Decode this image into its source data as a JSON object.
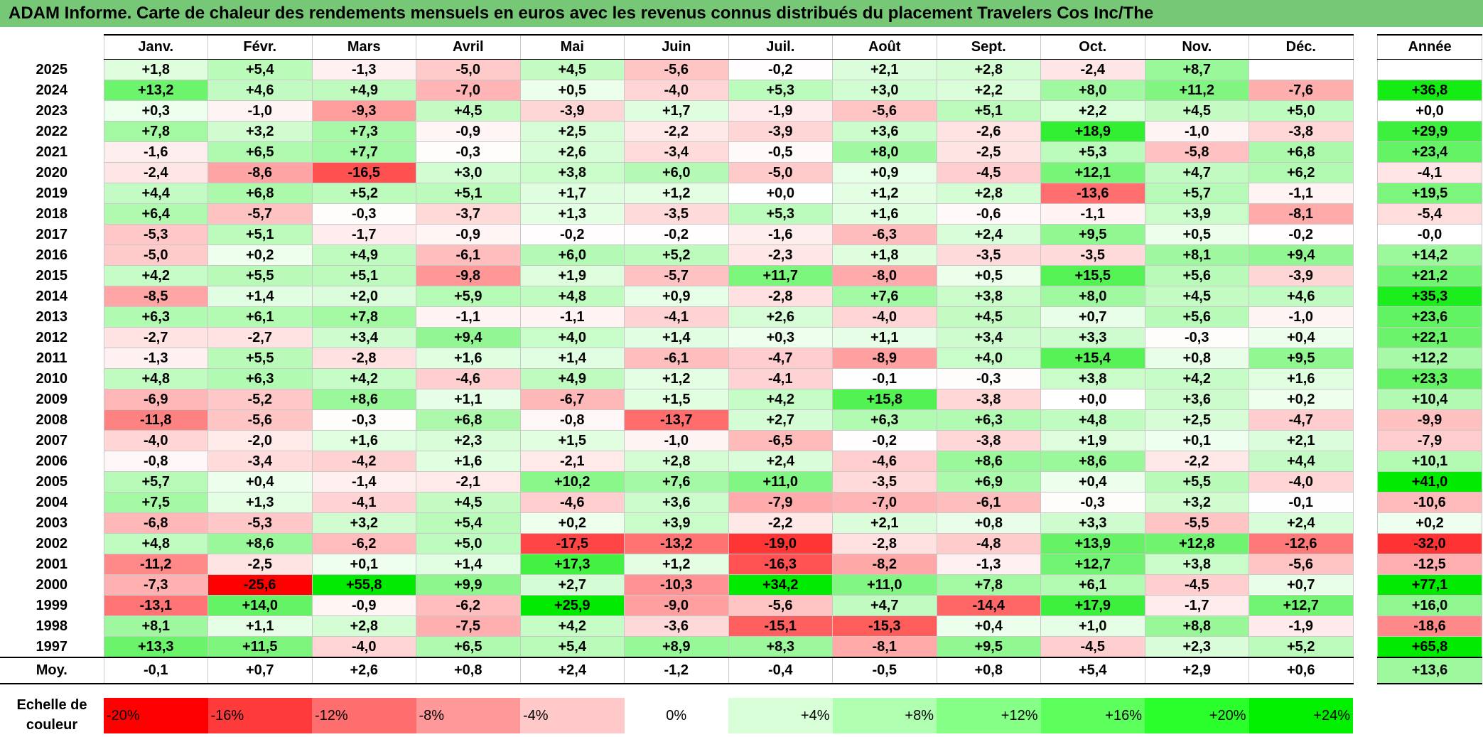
{
  "title": "ADAM Informe. Carte de chaleur des rendements mensuels en euros avec les revenus connus distribués du placement Travelers Cos Inc/The",
  "chart_data": {
    "type": "heatmap",
    "columns": [
      "Janv.",
      "Févr.",
      "Mars",
      "Avril",
      "Mai",
      "Juin",
      "Juil.",
      "Août",
      "Sept.",
      "Oct.",
      "Nov.",
      "Déc."
    ],
    "year_column_label": "Année",
    "rows": [
      {
        "year": "2025",
        "values": [
          "+1,8",
          "+5,4",
          "-1,3",
          "-5,0",
          "+4,5",
          "-5,6",
          "-0,2",
          "+2,1",
          "+2,8",
          "-2,4",
          "+8,7",
          ""
        ],
        "annual": ""
      },
      {
        "year": "2024",
        "values": [
          "+13,2",
          "+4,6",
          "+4,9",
          "-7,0",
          "+0,5",
          "-4,0",
          "+5,3",
          "+3,0",
          "+2,2",
          "+8,0",
          "+11,2",
          "-7,6"
        ],
        "annual": "+36,8"
      },
      {
        "year": "2023",
        "values": [
          "+0,3",
          "-1,0",
          "-9,3",
          "+4,5",
          "-3,9",
          "+1,7",
          "-1,9",
          "-5,6",
          "+5,1",
          "+2,2",
          "+4,5",
          "+5,0"
        ],
        "annual": "+0,0"
      },
      {
        "year": "2022",
        "values": [
          "+7,8",
          "+3,2",
          "+7,3",
          "-0,9",
          "+2,5",
          "-2,2",
          "-3,9",
          "+3,6",
          "-2,6",
          "+18,9",
          "-1,0",
          "-3,8"
        ],
        "annual": "+29,9"
      },
      {
        "year": "2021",
        "values": [
          "-1,6",
          "+6,5",
          "+7,7",
          "-0,3",
          "+2,6",
          "-3,4",
          "-0,5",
          "+8,0",
          "-2,5",
          "+5,3",
          "-5,8",
          "+6,8"
        ],
        "annual": "+23,4"
      },
      {
        "year": "2020",
        "values": [
          "-2,4",
          "-8,6",
          "-16,5",
          "+3,0",
          "+3,8",
          "+6,0",
          "-5,0",
          "+0,9",
          "-4,5",
          "+12,1",
          "+4,7",
          "+6,2"
        ],
        "annual": "-4,1"
      },
      {
        "year": "2019",
        "values": [
          "+4,4",
          "+6,8",
          "+5,2",
          "+5,1",
          "+1,7",
          "+1,2",
          "+0,0",
          "+1,2",
          "+2,8",
          "-13,6",
          "+5,7",
          "-1,1"
        ],
        "annual": "+19,5"
      },
      {
        "year": "2018",
        "values": [
          "+6,4",
          "-5,7",
          "-0,3",
          "-3,7",
          "+1,3",
          "-3,5",
          "+5,3",
          "+1,6",
          "-0,6",
          "-1,1",
          "+3,9",
          "-8,1"
        ],
        "annual": "-5,4"
      },
      {
        "year": "2017",
        "values": [
          "-5,3",
          "+5,1",
          "-1,7",
          "-0,9",
          "-0,2",
          "-0,2",
          "-1,6",
          "-6,3",
          "+2,4",
          "+9,5",
          "+0,5",
          "-0,2"
        ],
        "annual": "-0,0"
      },
      {
        "year": "2016",
        "values": [
          "-5,0",
          "+0,2",
          "+4,9",
          "-6,1",
          "+6,0",
          "+5,2",
          "-2,3",
          "+1,8",
          "-3,5",
          "-3,5",
          "+8,1",
          "+9,4"
        ],
        "annual": "+14,2"
      },
      {
        "year": "2015",
        "values": [
          "+4,2",
          "+5,5",
          "+5,1",
          "-9,8",
          "+1,9",
          "-5,7",
          "+11,7",
          "-8,0",
          "+0,5",
          "+15,5",
          "+5,6",
          "-3,9"
        ],
        "annual": "+21,2"
      },
      {
        "year": "2014",
        "values": [
          "-8,5",
          "+1,4",
          "+2,0",
          "+5,9",
          "+4,8",
          "+0,9",
          "-2,8",
          "+7,6",
          "+3,8",
          "+8,0",
          "+4,5",
          "+4,6"
        ],
        "annual": "+35,3"
      },
      {
        "year": "2013",
        "values": [
          "+6,3",
          "+6,1",
          "+7,8",
          "-1,1",
          "-1,1",
          "-4,1",
          "+2,6",
          "-4,0",
          "+4,5",
          "+0,7",
          "+5,6",
          "-1,0"
        ],
        "annual": "+23,6"
      },
      {
        "year": "2012",
        "values": [
          "-2,7",
          "-2,7",
          "+3,4",
          "+9,4",
          "+4,0",
          "+1,4",
          "+0,3",
          "+1,1",
          "+3,4",
          "+3,3",
          "-0,3",
          "+0,4"
        ],
        "annual": "+22,1"
      },
      {
        "year": "2011",
        "values": [
          "-1,3",
          "+5,5",
          "-2,8",
          "+1,6",
          "+1,4",
          "-6,1",
          "-4,7",
          "-8,9",
          "+4,0",
          "+15,4",
          "+0,8",
          "+9,5"
        ],
        "annual": "+12,2"
      },
      {
        "year": "2010",
        "values": [
          "+4,8",
          "+6,3",
          "+4,2",
          "-4,6",
          "+4,9",
          "+1,2",
          "-4,1",
          "-0,1",
          "-0,3",
          "+3,8",
          "+4,2",
          "+1,6"
        ],
        "annual": "+23,3"
      },
      {
        "year": "2009",
        "values": [
          "-6,9",
          "-5,2",
          "+8,6",
          "+1,1",
          "-6,7",
          "+1,5",
          "+4,2",
          "+15,8",
          "-3,8",
          "+0,0",
          "+3,6",
          "+0,2"
        ],
        "annual": "+10,4"
      },
      {
        "year": "2008",
        "values": [
          "-11,8",
          "-5,6",
          "-0,3",
          "+6,8",
          "-0,8",
          "-13,7",
          "+2,7",
          "+6,3",
          "+6,3",
          "+4,8",
          "+2,5",
          "-4,7"
        ],
        "annual": "-9,9"
      },
      {
        "year": "2007",
        "values": [
          "-4,0",
          "-2,0",
          "+1,6",
          "+2,3",
          "+1,5",
          "-1,0",
          "-6,5",
          "-0,2",
          "-3,8",
          "+1,9",
          "+0,1",
          "+2,1"
        ],
        "annual": "-7,9"
      },
      {
        "year": "2006",
        "values": [
          "-0,8",
          "-3,4",
          "-4,2",
          "+1,6",
          "-2,1",
          "+2,8",
          "+2,4",
          "-4,6",
          "+8,6",
          "+8,6",
          "-2,2",
          "+4,4"
        ],
        "annual": "+10,1"
      },
      {
        "year": "2005",
        "values": [
          "+5,7",
          "+0,4",
          "-1,4",
          "-2,1",
          "+10,2",
          "+7,6",
          "+11,0",
          "-3,5",
          "+6,9",
          "+0,4",
          "+5,5",
          "-4,0"
        ],
        "annual": "+41,0"
      },
      {
        "year": "2004",
        "values": [
          "+7,5",
          "+1,3",
          "-4,1",
          "+4,5",
          "-4,6",
          "+3,6",
          "-7,9",
          "-7,0",
          "-6,1",
          "-0,3",
          "+3,2",
          "-0,1"
        ],
        "annual": "-10,6"
      },
      {
        "year": "2003",
        "values": [
          "-6,8",
          "-5,3",
          "+3,2",
          "+5,4",
          "+0,2",
          "+3,9",
          "-2,2",
          "+2,1",
          "+0,8",
          "+3,3",
          "-5,5",
          "+2,4"
        ],
        "annual": "+0,2"
      },
      {
        "year": "2002",
        "values": [
          "+4,8",
          "+8,6",
          "-6,2",
          "+5,0",
          "-17,5",
          "-13,2",
          "-19,0",
          "-2,8",
          "-4,8",
          "+13,9",
          "+12,8",
          "-12,6"
        ],
        "annual": "-32,0"
      },
      {
        "year": "2001",
        "values": [
          "-11,2",
          "-2,5",
          "+0,1",
          "+1,4",
          "+17,3",
          "+1,2",
          "-16,3",
          "-8,2",
          "-1,3",
          "+12,7",
          "+3,8",
          "-5,6"
        ],
        "annual": "-12,5"
      },
      {
        "year": "2000",
        "values": [
          "-7,3",
          "-25,6",
          "+55,8",
          "+9,9",
          "+2,7",
          "-10,3",
          "+34,2",
          "+11,0",
          "+7,8",
          "+6,1",
          "-4,5",
          "+0,7"
        ],
        "annual": "+77,1"
      },
      {
        "year": "1999",
        "values": [
          "-13,1",
          "+14,0",
          "-0,9",
          "-6,2",
          "+25,9",
          "-9,0",
          "-5,6",
          "+4,7",
          "-14,4",
          "+17,9",
          "-1,7",
          "+12,7"
        ],
        "annual": "+16,0"
      },
      {
        "year": "1998",
        "values": [
          "+8,1",
          "+1,1",
          "+2,8",
          "-7,5",
          "+4,2",
          "-3,6",
          "-15,1",
          "-15,3",
          "+0,4",
          "+1,0",
          "+8,8",
          "-1,9"
        ],
        "annual": "-18,6"
      },
      {
        "year": "1997",
        "values": [
          "+13,3",
          "+11,5",
          "-4,0",
          "+6,5",
          "+5,4",
          "+8,9",
          "+8,3",
          "-8,1",
          "+9,5",
          "-4,5",
          "+2,3",
          "+5,2"
        ],
        "annual": "+65,8"
      }
    ],
    "average": {
      "label": "Moy.",
      "values": [
        "-0,1",
        "+0,7",
        "+2,6",
        "+0,8",
        "+2,4",
        "-1,2",
        "-0,4",
        "-0,5",
        "+0,8",
        "+5,4",
        "+2,9",
        "+0,6"
      ],
      "annual": "+13,6"
    },
    "legend": {
      "label": "Echelle de\ncouleur",
      "stops": [
        "-20%",
        "-16%",
        "-12%",
        "-8%",
        "-4%",
        "0%",
        "+4%",
        "+8%",
        "+12%",
        "+16%",
        "+20%",
        "+24%"
      ],
      "colors": [
        "#ff0000",
        "#ff3a3a",
        "#ff6e6e",
        "#ff9999",
        "#ffc9c9",
        "#ffffff",
        "#d9ffd9",
        "#b0ffb0",
        "#86ff86",
        "#5cff5c",
        "#2bff2b",
        "#00f000"
      ]
    }
  }
}
